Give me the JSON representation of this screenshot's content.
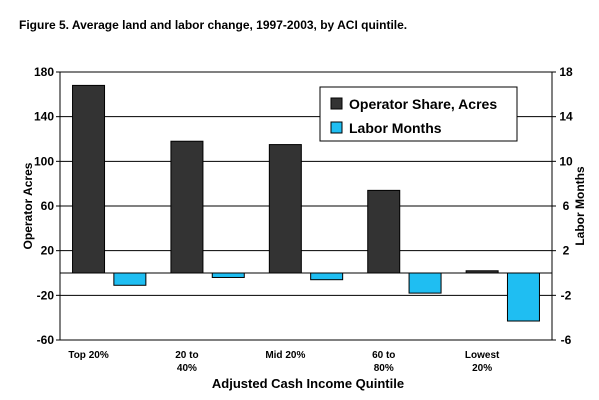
{
  "figure_title": "Figure 5. Average land and labor change, 1997-2003, by ACI quintile.",
  "chart_data": {
    "type": "bar",
    "categories": [
      "Top 20%",
      "20 to 40%",
      "Mid 20%",
      "60 to 80%",
      "Lowest 20%"
    ],
    "category_lines": [
      [
        "Top 20%"
      ],
      [
        "20 to",
        "40%"
      ],
      [
        "Mid 20%"
      ],
      [
        "60 to",
        "80%"
      ],
      [
        "Lowest",
        "20%"
      ]
    ],
    "series": [
      {
        "name": "Operator Share, Acres",
        "axis": "left",
        "color": "#333333",
        "values": [
          168,
          118,
          115,
          74,
          2
        ]
      },
      {
        "name": "Labor Months",
        "axis": "right",
        "color": "#1fbef2",
        "values": [
          -1.1,
          -0.4,
          -0.6,
          -1.8,
          -4.3
        ]
      }
    ],
    "xlabel": "Adjusted Cash Income Quintile",
    "ylabel": "Operator Acres",
    "y2label": "Labor Months",
    "ylim": [
      -60,
      180
    ],
    "y2lim": [
      -6,
      18
    ],
    "yticks": [
      180,
      140,
      100,
      60,
      20,
      -20,
      -60
    ],
    "y2ticks": [
      18,
      14,
      10,
      6,
      2,
      -2,
      -6
    ],
    "grid": true,
    "legend_position": "top-right"
  }
}
